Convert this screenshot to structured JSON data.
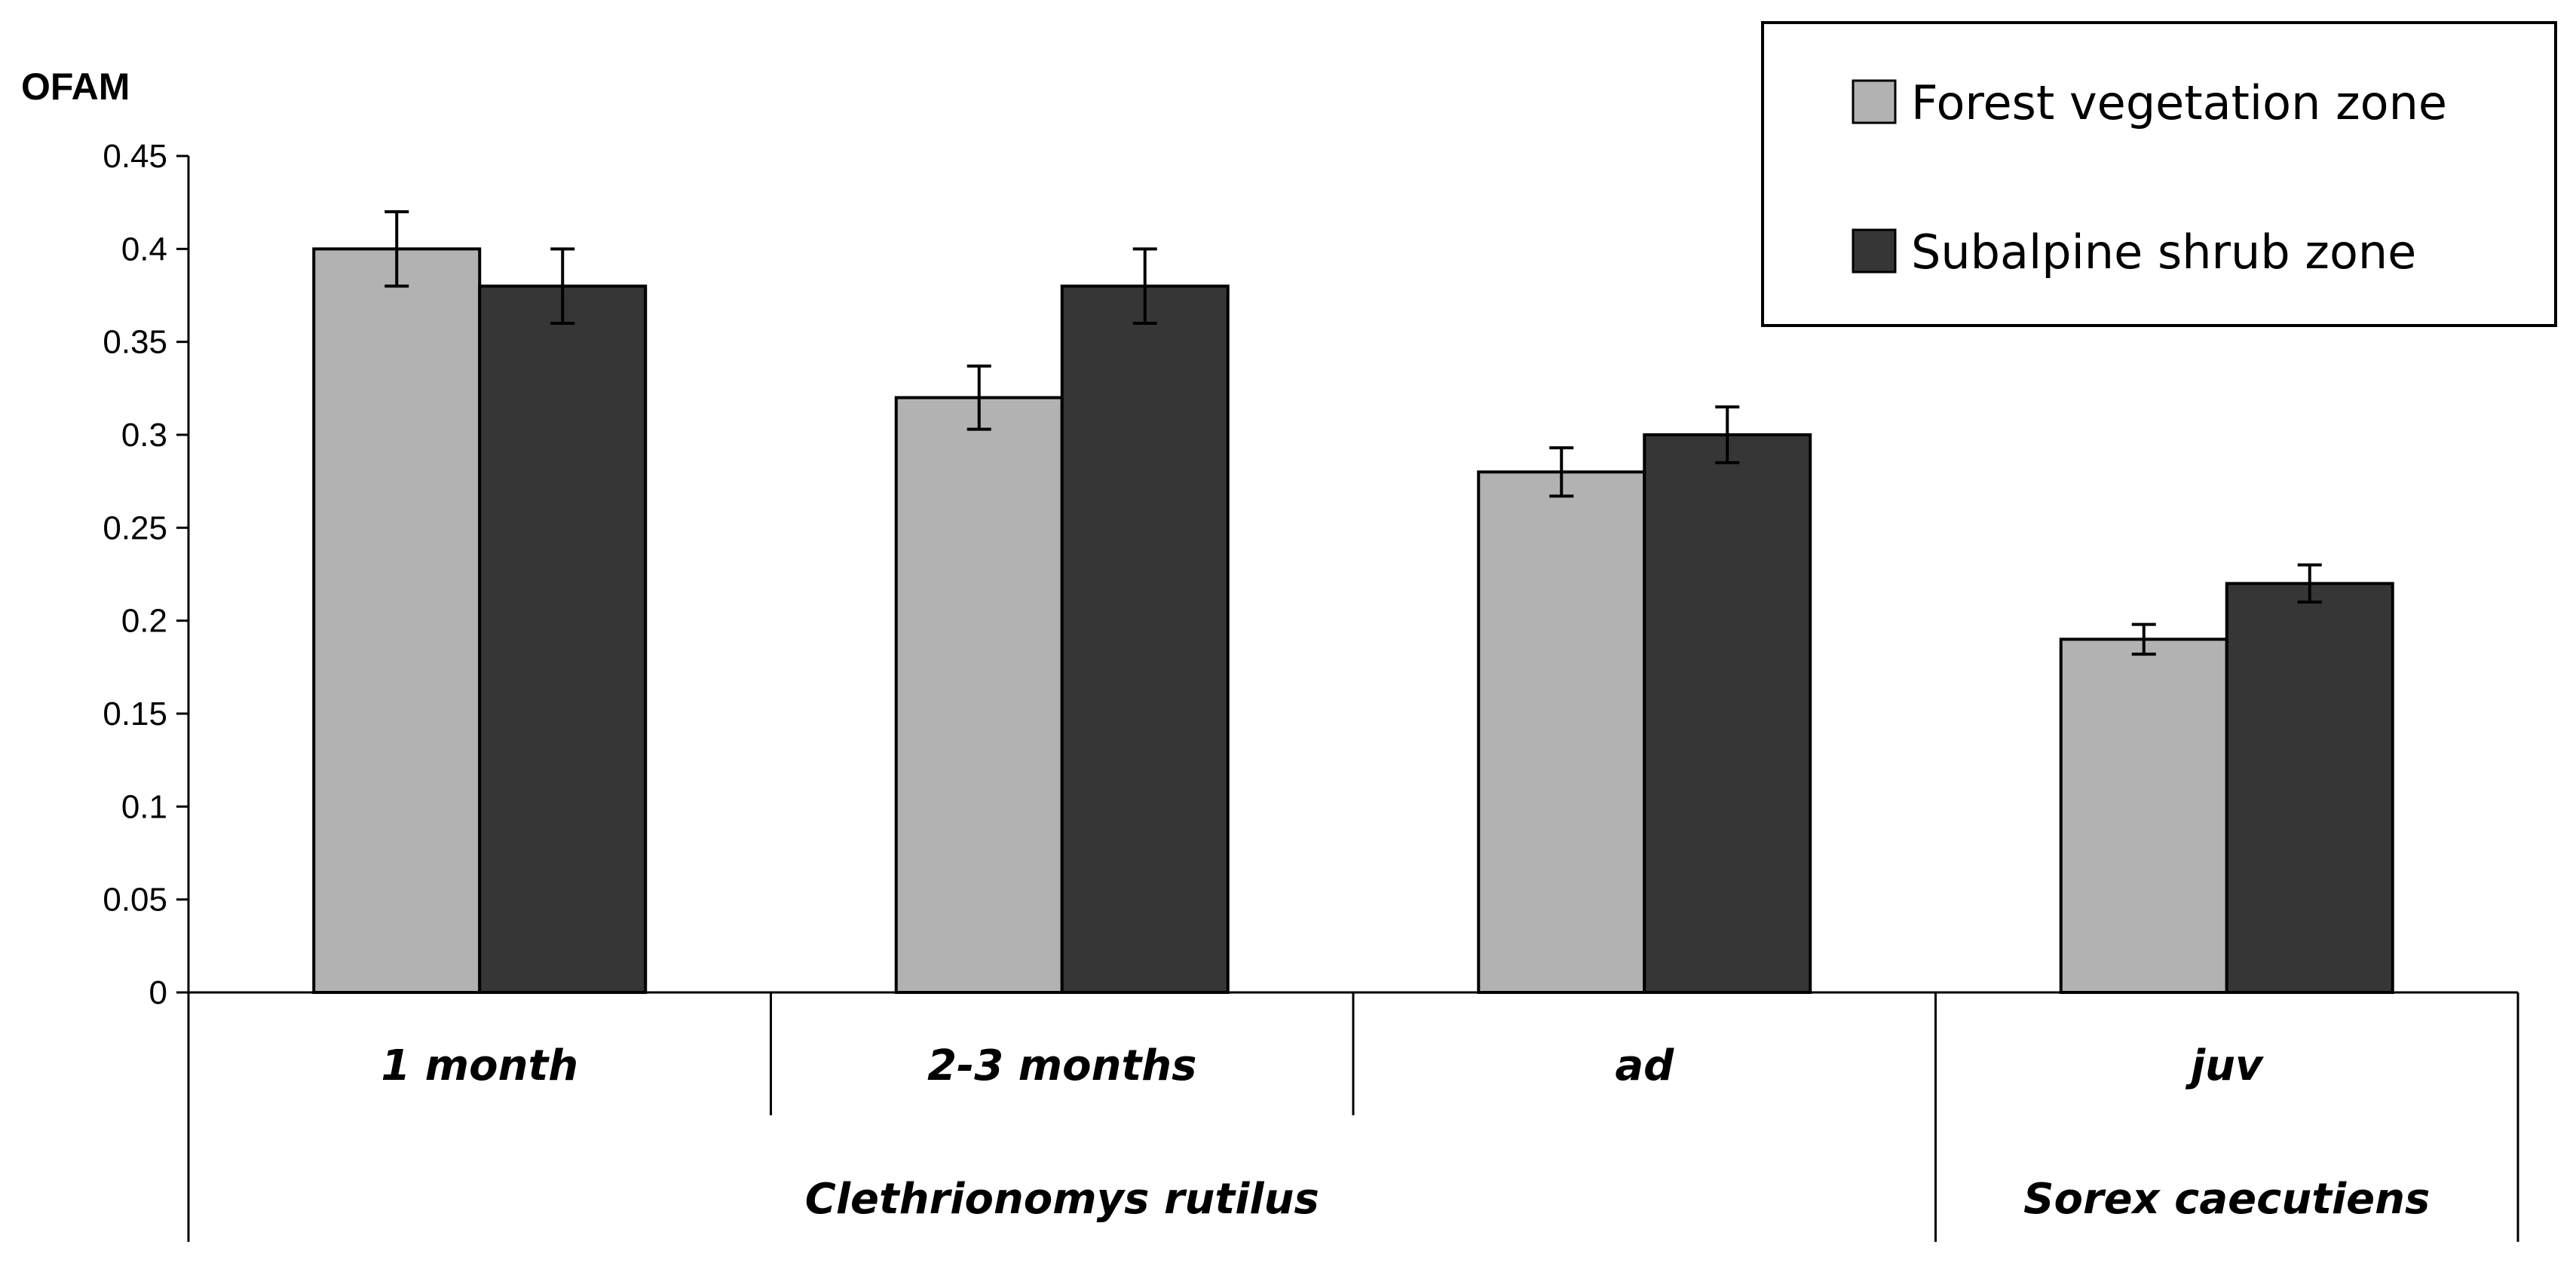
{
  "chart_data": {
    "type": "bar",
    "ylabel": "OFAM",
    "ylim": [
      0,
      0.45
    ],
    "yticks": [
      "0",
      "0.05",
      "0.1",
      "0.15",
      "0.2",
      "0.25",
      "0.3",
      "0.35",
      "0.4",
      "0.45"
    ],
    "categories": [
      "1 month",
      "2-3 months",
      "ad",
      "juv"
    ],
    "groups": [
      {
        "label": "Clethrionomys rutilus",
        "span": [
          0,
          2
        ]
      },
      {
        "label": "Sorex caecutiens",
        "span": [
          3,
          3
        ]
      }
    ],
    "series": [
      {
        "name": "Forest vegetation zone",
        "color": "#b2b2b2",
        "values": [
          0.4,
          0.32,
          0.28,
          0.19
        ],
        "errors": [
          0.02,
          0.017,
          0.013,
          0.008
        ]
      },
      {
        "name": "Subalpine shrub zone",
        "color": "#363636",
        "values": [
          0.38,
          0.38,
          0.3,
          0.22
        ],
        "errors": [
          0.02,
          0.02,
          0.015,
          0.01
        ]
      }
    ],
    "legend_position": "top-right"
  }
}
